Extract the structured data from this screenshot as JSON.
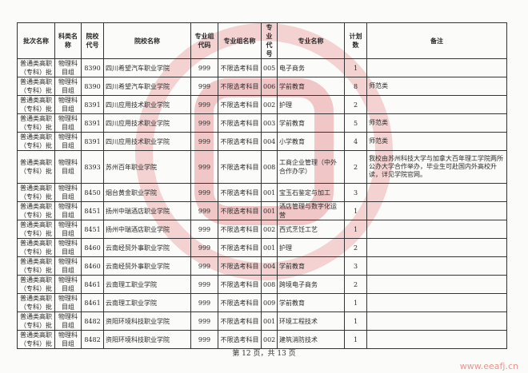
{
  "columns": [
    "批次名称",
    "科类名称",
    "院校代号",
    "院校名称",
    "专业组代码",
    "专业组名称",
    "专业代号",
    "专业名称",
    "计划数",
    "备注"
  ],
  "rows": [
    {
      "batch": "普通类高职（专科）批",
      "category": "物理科目组",
      "school_code": "8390",
      "school": "四川希望汽车职业学院",
      "group_code": "999",
      "group_name": "不限选考科目",
      "major_code": "005",
      "major": "电子商务",
      "plan": "1",
      "note": ""
    },
    {
      "batch": "普通类高职（专科）批",
      "category": "物理科目组",
      "school_code": "8390",
      "school": "四川希望汽车职业学院",
      "group_code": "999",
      "group_name": "不限选考科目",
      "major_code": "006",
      "major": "学前教育",
      "plan": "8",
      "note": "师范类"
    },
    {
      "batch": "普通类高职（专科）批",
      "category": "物理科目组",
      "school_code": "8391",
      "school": "四川应用技术职业学院",
      "group_code": "999",
      "group_name": "不限选考科目",
      "major_code": "002",
      "major": "护理",
      "plan": "2",
      "note": ""
    },
    {
      "batch": "普通类高职（专科）批",
      "category": "物理科目组",
      "school_code": "8391",
      "school": "四川应用技术职业学院",
      "group_code": "999",
      "group_name": "不限选考科目",
      "major_code": "003",
      "major": "学前教育",
      "plan": "5",
      "note": "师范类"
    },
    {
      "batch": "普通类高职（专科）批",
      "category": "物理科目组",
      "school_code": "8391",
      "school": "四川应用技术职业学院",
      "group_code": "999",
      "group_name": "不限选考科目",
      "major_code": "004",
      "major": "小学教育",
      "plan": "4",
      "note": "师范类"
    },
    {
      "batch": "普通类高职（专科）批",
      "category": "物理科目组",
      "school_code": "8393",
      "school": "苏州百年职业学院",
      "group_code": "999",
      "group_name": "不限选考科目",
      "major_code": "008",
      "major": "工商企业管理（中外合作办学）",
      "plan": "2",
      "note": "我校由苏州科技大学与加拿大百年理工学院两所公办大学合作举办，毕业生可赴国内外高校升读，详见学院官网。"
    },
    {
      "batch": "普通类高职（专科）批",
      "category": "物理科目组",
      "school_code": "8450",
      "school": "烟台黄金职业学院",
      "group_code": "999",
      "group_name": "不限选考科目",
      "major_code": "001",
      "major": "宝玉石鉴定与加工",
      "plan": "3",
      "note": ""
    },
    {
      "batch": "普通类高职（专科）批",
      "category": "物理科目组",
      "school_code": "8451",
      "school": "扬州中瑞酒店职业学院",
      "group_code": "999",
      "group_name": "不限选考科目",
      "major_code": "001",
      "major": "酒店管理与数字化运营",
      "plan": "1",
      "note": ""
    },
    {
      "batch": "普通类高职（专科）批",
      "category": "物理科目组",
      "school_code": "8451",
      "school": "扬州中瑞酒店职业学院",
      "group_code": "999",
      "group_name": "不限选考科目",
      "major_code": "002",
      "major": "西式烹饪工艺",
      "plan": "1",
      "note": ""
    },
    {
      "batch": "普通类高职（专科）批",
      "category": "物理科目组",
      "school_code": "8460",
      "school": "云南经贸外事职业学院",
      "group_code": "999",
      "group_name": "不限选考科目",
      "major_code": "001",
      "major": "护理",
      "plan": "2",
      "note": ""
    },
    {
      "batch": "普通类高职（专科）批",
      "category": "物理科目组",
      "school_code": "8460",
      "school": "云南经贸外事职业学院",
      "group_code": "999",
      "group_name": "不限选考科目",
      "major_code": "004",
      "major": "学前教育",
      "plan": "3",
      "note": ""
    },
    {
      "batch": "普通类高职（专科）批",
      "category": "物理科目组",
      "school_code": "8461",
      "school": "云南理工职业学院",
      "group_code": "999",
      "group_name": "不限选考科目",
      "major_code": "008",
      "major": "跨境电子商务",
      "plan": "2",
      "note": ""
    },
    {
      "batch": "普通类高职（专科）批",
      "category": "物理科目组",
      "school_code": "8461",
      "school": "云南理工职业学院",
      "group_code": "999",
      "group_name": "不限选考科目",
      "major_code": "009",
      "major": "学前教育",
      "plan": "1",
      "note": ""
    },
    {
      "batch": "普通类高职（专科）批",
      "category": "物理科目组",
      "school_code": "8482",
      "school": "资阳环境科技职业学院",
      "group_code": "999",
      "group_name": "不限选考科目",
      "major_code": "001",
      "major": "环境工程技术",
      "plan": "1",
      "note": ""
    },
    {
      "batch": "普通类高职（专科）批",
      "category": "物理科目组",
      "school_code": "8482",
      "school": "资阳环境科技职业学院",
      "group_code": "999",
      "group_name": "不限选考科目",
      "major_code": "002",
      "major": "建筑消防技术",
      "plan": "1",
      "note": ""
    }
  ],
  "footer": "第 12 页，共 13 页",
  "watermark": {
    "text": "www.eeafj.cn",
    "color": "#d9534f"
  }
}
